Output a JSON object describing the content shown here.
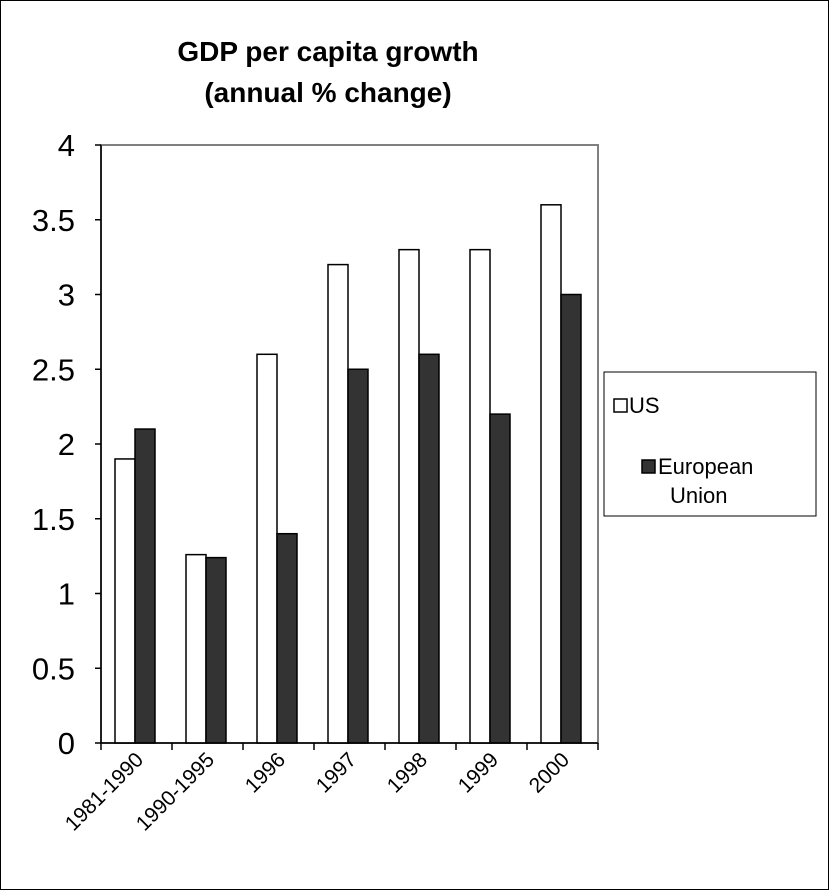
{
  "chart_data": {
    "type": "bar",
    "title": "GDP per capita growth",
    "subtitle": "(annual % change)",
    "xlabel": "",
    "ylabel": "",
    "categories": [
      "1981-1990",
      "1990-1995",
      "1996",
      "1997",
      "1998",
      "1999",
      "2000"
    ],
    "series": [
      {
        "name": "US",
        "values": [
          1.9,
          1.26,
          2.6,
          3.2,
          3.3,
          3.3,
          3.6
        ],
        "color": "#ffffff"
      },
      {
        "name": "European Union",
        "name_lines": [
          "European",
          "Union"
        ],
        "values": [
          2.1,
          1.24,
          1.4,
          2.5,
          2.6,
          2.2,
          3.0
        ],
        "color": "#333333"
      }
    ],
    "ylim": [
      0,
      4
    ],
    "yticks": [
      "0",
      "0.5",
      "1",
      "1.5",
      "2",
      "2.5",
      "3",
      "3.5",
      "4"
    ],
    "grid": false,
    "legend_position": "right"
  }
}
